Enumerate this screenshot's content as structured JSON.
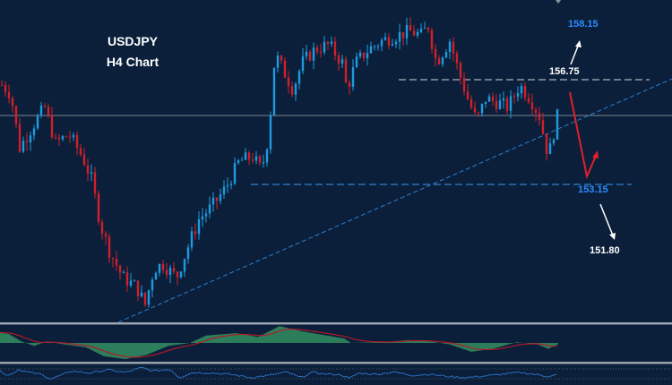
{
  "title": "USDJPY",
  "subtitle": "H4 Chart",
  "colors": {
    "background": "#0b1f3a",
    "up_candle": "#1e9be0",
    "down_candle": "#d0202a",
    "target_up": "#2b8cff",
    "histogram": "#3aa86a",
    "signal": "#b01a28",
    "oscillator": "#2a6fc0"
  },
  "chart_data": {
    "type": "candlestick",
    "symbol": "USDJPY",
    "timeframe": "H4",
    "price_path": [
      [
        0,
        156.57
      ],
      [
        2.5,
        156.26
      ],
      [
        5,
        154.41
      ],
      [
        8.75,
        155.18
      ],
      [
        12,
        155.8
      ],
      [
        15,
        154.57
      ],
      [
        18.75,
        154.87
      ],
      [
        22.5,
        154.1
      ],
      [
        25,
        153.33
      ],
      [
        27.5,
        151.79
      ],
      [
        30,
        150.87
      ],
      [
        33.75,
        149.95
      ],
      [
        37.5,
        149.64
      ],
      [
        40,
        149.02
      ],
      [
        42.5,
        150.26
      ],
      [
        45,
        150.41
      ],
      [
        48.75,
        149.95
      ],
      [
        52.5,
        151.18
      ],
      [
        55,
        151.95
      ],
      [
        58.75,
        152.41
      ],
      [
        62.5,
        153.03
      ],
      [
        66.25,
        153.95
      ],
      [
        70,
        154.1
      ],
      [
        72.5,
        153.64
      ],
      [
        74.5,
        154.87
      ],
      [
        76.25,
        157.64
      ],
      [
        78.75,
        157.02
      ],
      [
        81.25,
        156.41
      ],
      [
        83.75,
        157.33
      ],
      [
        87.5,
        157.8
      ],
      [
        91.25,
        157.95
      ],
      [
        95,
        157.33
      ],
      [
        96.25,
        156.41
      ],
      [
        98.75,
        157.33
      ],
      [
        102.5,
        157.8
      ],
      [
        106.25,
        158.1
      ],
      [
        110,
        158.26
      ],
      [
        113.75,
        158.41
      ],
      [
        117.5,
        158.26
      ],
      [
        118.75,
        158.72
      ],
      [
        121.25,
        157.33
      ],
      [
        125,
        158.1
      ],
      [
        127.5,
        157.02
      ],
      [
        130,
        156.1
      ],
      [
        132.5,
        155.33
      ],
      [
        135,
        156.1
      ],
      [
        138.75,
        155.95
      ],
      [
        141.25,
        155.8
      ],
      [
        144.5,
        156.57
      ],
      [
        147.5,
        156.1
      ],
      [
        150,
        155.49
      ],
      [
        152.5,
        154.1
      ],
      [
        155,
        155.49
      ]
    ],
    "levels": {
      "resistance": 156.75,
      "support": 153.15,
      "horizontal": 155.52
    },
    "trendline": [
      [
        32.5,
        148.41
      ],
      [
        187,
        156.78
      ]
    ],
    "annotations": [
      {
        "text": "158.15",
        "role": "upside-target",
        "color": "#2b8cff"
      },
      {
        "text": "156.75",
        "role": "resistance",
        "color": "#ffffff"
      },
      {
        "text": "153.15",
        "role": "support",
        "color": "#2b8cff"
      },
      {
        "text": "151.80",
        "role": "downside-target",
        "color": "#ffffff"
      }
    ],
    "macd_histogram": [
      [
        0,
        35
      ],
      [
        2.5,
        30
      ],
      [
        6,
        5
      ],
      [
        9.5,
        -10
      ],
      [
        13,
        5
      ],
      [
        18,
        -5
      ],
      [
        24,
        -15
      ],
      [
        29,
        -45
      ],
      [
        35,
        -55
      ],
      [
        41,
        -40
      ],
      [
        47,
        -10
      ],
      [
        53,
        0
      ],
      [
        57.5,
        25
      ],
      [
        66,
        33
      ],
      [
        72,
        20
      ],
      [
        78,
        57
      ],
      [
        84,
        40
      ],
      [
        96,
        15
      ],
      [
        98,
        0
      ],
      [
        108,
        3
      ],
      [
        114,
        10
      ],
      [
        120,
        5
      ],
      [
        125.5,
        -5
      ],
      [
        131.5,
        -30
      ],
      [
        137.5,
        -20
      ],
      [
        144,
        2
      ],
      [
        149.5,
        -3
      ],
      [
        153,
        -20
      ],
      [
        155.5,
        -5
      ]
    ],
    "oscillator": [
      [
        0,
        60
      ],
      [
        5,
        35
      ],
      [
        15,
        45
      ],
      [
        20,
        62
      ],
      [
        30,
        50
      ],
      [
        45,
        40
      ],
      [
        57,
        20
      ],
      [
        70,
        38
      ],
      [
        80,
        55
      ],
      [
        100,
        45
      ],
      [
        120,
        60
      ],
      [
        140,
        48
      ],
      [
        158,
        70
      ],
      [
        170,
        55
      ],
      [
        190,
        62
      ],
      [
        200,
        25
      ],
      [
        215,
        48
      ],
      [
        240,
        45
      ],
      [
        260,
        38
      ],
      [
        280,
        25
      ],
      [
        300,
        35
      ],
      [
        320,
        50
      ],
      [
        335,
        25
      ],
      [
        350,
        50
      ],
      [
        360,
        42
      ],
      [
        380,
        38
      ],
      [
        390,
        22
      ],
      [
        400,
        45
      ],
      [
        420,
        40
      ],
      [
        440,
        50
      ],
      [
        460,
        35
      ],
      [
        480,
        40
      ],
      [
        500,
        30
      ],
      [
        520,
        25
      ],
      [
        540,
        32
      ],
      [
        560,
        40
      ],
      [
        580,
        48
      ],
      [
        600,
        38
      ],
      [
        610,
        30
      ],
      [
        622,
        38
      ]
    ]
  }
}
